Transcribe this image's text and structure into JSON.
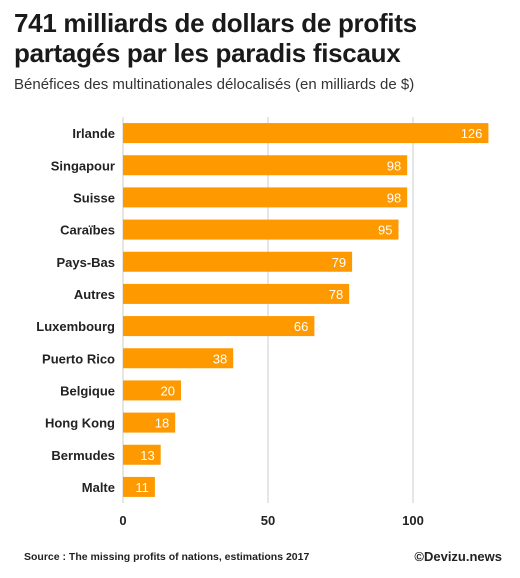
{
  "title": "741 milliards de dollars de profits partagés par les paradis fiscaux",
  "subtitle": "Bénéfices des multinationales délocalisés (en milliards de $)",
  "source": "Source : The missing profits of nations, estimations 2017",
  "brand": "©Devizu.news",
  "chart_data": {
    "type": "bar",
    "orientation": "horizontal",
    "title": "741 milliards de dollars de profits partagés par les paradis fiscaux",
    "subtitle": "Bénéfices des multinationales délocalisés (en milliards de $)",
    "categories": [
      "Irlande",
      "Singapour",
      "Suisse",
      "Caraïbes",
      "Pays-Bas",
      "Autres",
      "Luxembourg",
      "Puerto Rico",
      "Belgique",
      "Hong Kong",
      "Bermudes",
      "Malte"
    ],
    "values": [
      126,
      98,
      98,
      95,
      79,
      78,
      66,
      38,
      20,
      18,
      13,
      11
    ],
    "xlim": [
      0,
      130
    ],
    "xticks": [
      0,
      50,
      100
    ],
    "grid": true,
    "data_labels": true,
    "bar_color": "#ff9900"
  }
}
